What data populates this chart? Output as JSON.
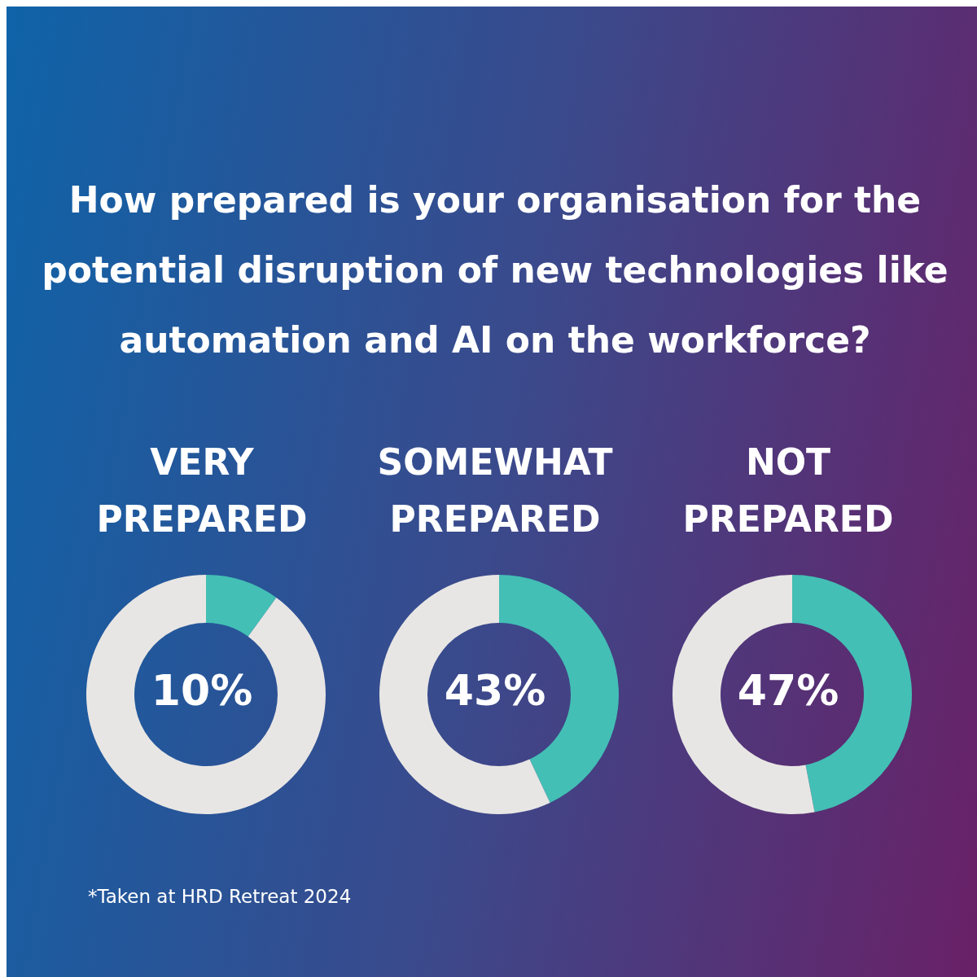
{
  "chart_data": [
    {
      "type": "other",
      "title": "How prepared is your organisation for the potential disruption of new technologies like automation and AI on the workforce?",
      "annotations": [
        "*Taken at HRD Retreat 2024"
      ]
    },
    {
      "type": "donut",
      "title": "VERY PREPARED",
      "categories": [
        null,
        null
      ],
      "values": [
        10,
        90
      ],
      "colors": [
        "#43bfb5",
        "#e8e6e4"
      ],
      "annotations": [
        "10%"
      ]
    },
    {
      "type": "donut",
      "title": "SOMEWHAT PREPARED",
      "categories": [
        null,
        null
      ],
      "values": [
        43,
        57
      ],
      "colors": [
        "#43bfb5",
        "#e8e6e4"
      ],
      "annotations": [
        "43%"
      ]
    },
    {
      "type": "donut",
      "title": "NOT PREPARED",
      "categories": [
        null,
        null
      ],
      "values": [
        47,
        53
      ],
      "colors": [
        "#43bfb5",
        "#e8e6e4"
      ],
      "annotations": [
        "47%"
      ]
    }
  ]
}
